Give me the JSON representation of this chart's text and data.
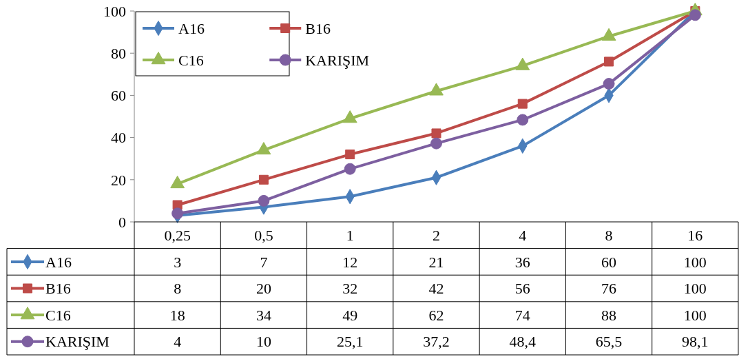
{
  "chart_data": {
    "type": "line",
    "categories": [
      "0,25",
      "0,5",
      "1",
      "2",
      "4",
      "8",
      "16"
    ],
    "series": [
      {
        "name": "A16",
        "color": "#4a7ebb",
        "marker": "diamond",
        "values": [
          3,
          7,
          12,
          21,
          36,
          60,
          100
        ],
        "value_labels": [
          "3",
          "7",
          "12",
          "21",
          "36",
          "60",
          "100"
        ]
      },
      {
        "name": "B16",
        "color": "#be4b48",
        "marker": "square",
        "values": [
          8,
          20,
          32,
          42,
          56,
          76,
          100
        ],
        "value_labels": [
          "8",
          "20",
          "32",
          "42",
          "56",
          "76",
          "100"
        ]
      },
      {
        "name": "C16",
        "color": "#98b954",
        "marker": "triangle",
        "values": [
          18,
          34,
          49,
          62,
          74,
          88,
          100
        ],
        "value_labels": [
          "18",
          "34",
          "49",
          "62",
          "74",
          "88",
          "100"
        ]
      },
      {
        "name": "KARIŞIM",
        "color": "#7d5fa0",
        "marker": "circle",
        "values": [
          4,
          10,
          25.1,
          37.2,
          48.4,
          65.5,
          98.1
        ],
        "value_labels": [
          "4",
          "10",
          "25,1",
          "37,2",
          "48,4",
          "65,5",
          "98,1"
        ]
      }
    ],
    "ylim": [
      0,
      100
    ],
    "yticks": [
      0,
      20,
      40,
      60,
      80,
      100
    ],
    "legend": "top left",
    "line_style": "solid"
  }
}
